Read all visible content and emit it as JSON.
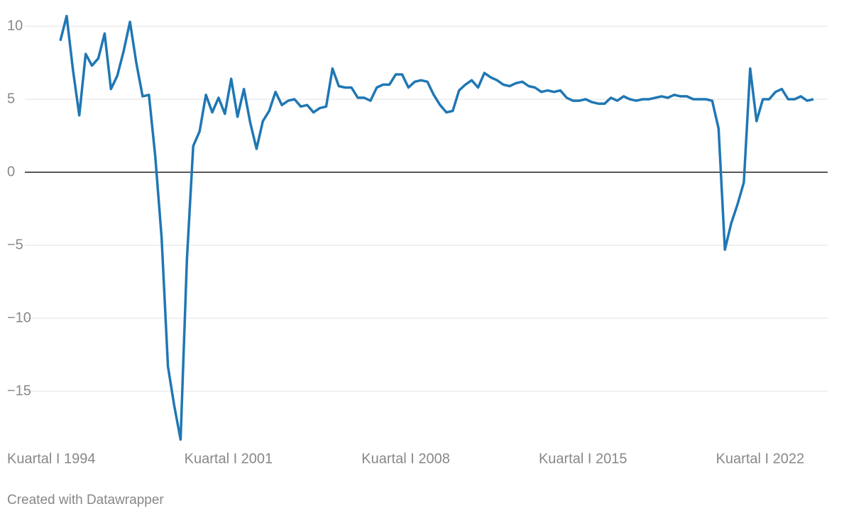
{
  "chart_data": {
    "type": "line",
    "categories": [
      "Kuartal I 1994",
      null,
      null,
      null,
      null,
      null,
      null,
      null,
      null,
      null,
      null,
      null,
      null,
      null,
      null,
      null,
      null,
      null,
      null,
      null,
      null,
      null,
      null,
      null,
      null,
      null,
      null,
      null,
      "Kuartal I 2001",
      null,
      null,
      null,
      null,
      null,
      null,
      null,
      null,
      null,
      null,
      null,
      null,
      null,
      null,
      null,
      null,
      null,
      null,
      null,
      null,
      null,
      null,
      null,
      null,
      null,
      null,
      null,
      "Kuartal I 2008",
      null,
      null,
      null,
      null,
      null,
      null,
      null,
      null,
      null,
      null,
      null,
      null,
      null,
      null,
      null,
      null,
      null,
      null,
      null,
      null,
      null,
      null,
      null,
      null,
      null,
      null,
      null,
      "Kuartal I 2015",
      null,
      null,
      null,
      null,
      null,
      null,
      null,
      null,
      null,
      null,
      null,
      null,
      null,
      null,
      null,
      null,
      null,
      null,
      null,
      null,
      null,
      null,
      null,
      null,
      null,
      null,
      null,
      "Kuartal I 2022",
      null,
      null,
      null,
      null,
      null,
      null,
      null
    ],
    "values": [
      9.0,
      10.7,
      7.0,
      3.9,
      8.1,
      7.3,
      7.8,
      9.5,
      5.7,
      6.6,
      8.3,
      10.3,
      7.5,
      5.2,
      5.3,
      1.1,
      -4.5,
      -13.3,
      -16.0,
      -18.3,
      -6.0,
      1.8,
      2.8,
      5.3,
      4.1,
      5.1,
      4.0,
      6.4,
      3.8,
      5.7,
      3.4,
      1.6,
      3.5,
      4.2,
      5.5,
      4.6,
      4.9,
      5.0,
      4.5,
      4.6,
      4.1,
      4.4,
      4.5,
      7.1,
      5.9,
      5.8,
      5.8,
      5.1,
      5.1,
      4.9,
      5.8,
      6.0,
      6.0,
      6.7,
      6.7,
      5.8,
      6.2,
      6.3,
      6.2,
      5.3,
      4.6,
      4.1,
      4.2,
      5.6,
      6.0,
      6.3,
      5.8,
      6.8,
      6.5,
      6.3,
      6.0,
      5.9,
      6.1,
      6.2,
      5.9,
      5.8,
      5.5,
      5.6,
      5.5,
      5.6,
      5.1,
      4.9,
      4.9,
      5.0,
      4.8,
      4.7,
      4.7,
      5.1,
      4.9,
      5.2,
      5.0,
      4.9,
      5.0,
      5.0,
      5.1,
      5.2,
      5.1,
      5.3,
      5.2,
      5.2,
      5.0,
      5.0,
      5.0,
      4.9,
      3.0,
      -5.3,
      -3.5,
      -2.2,
      -0.7,
      7.1,
      3.5,
      5.0,
      5.0,
      5.5,
      5.7,
      5.0,
      5.0,
      5.2,
      4.9,
      5.0
    ],
    "color": "#1f77b4",
    "ylim": [
      -18.5,
      11
    ],
    "yticks": [
      {
        "value": -15,
        "label": "−15"
      },
      {
        "value": -10,
        "label": "−10"
      },
      {
        "value": -5,
        "label": "−5"
      },
      0,
      5,
      10
    ],
    "grid": true,
    "footer": "Created with Datawrapper"
  }
}
